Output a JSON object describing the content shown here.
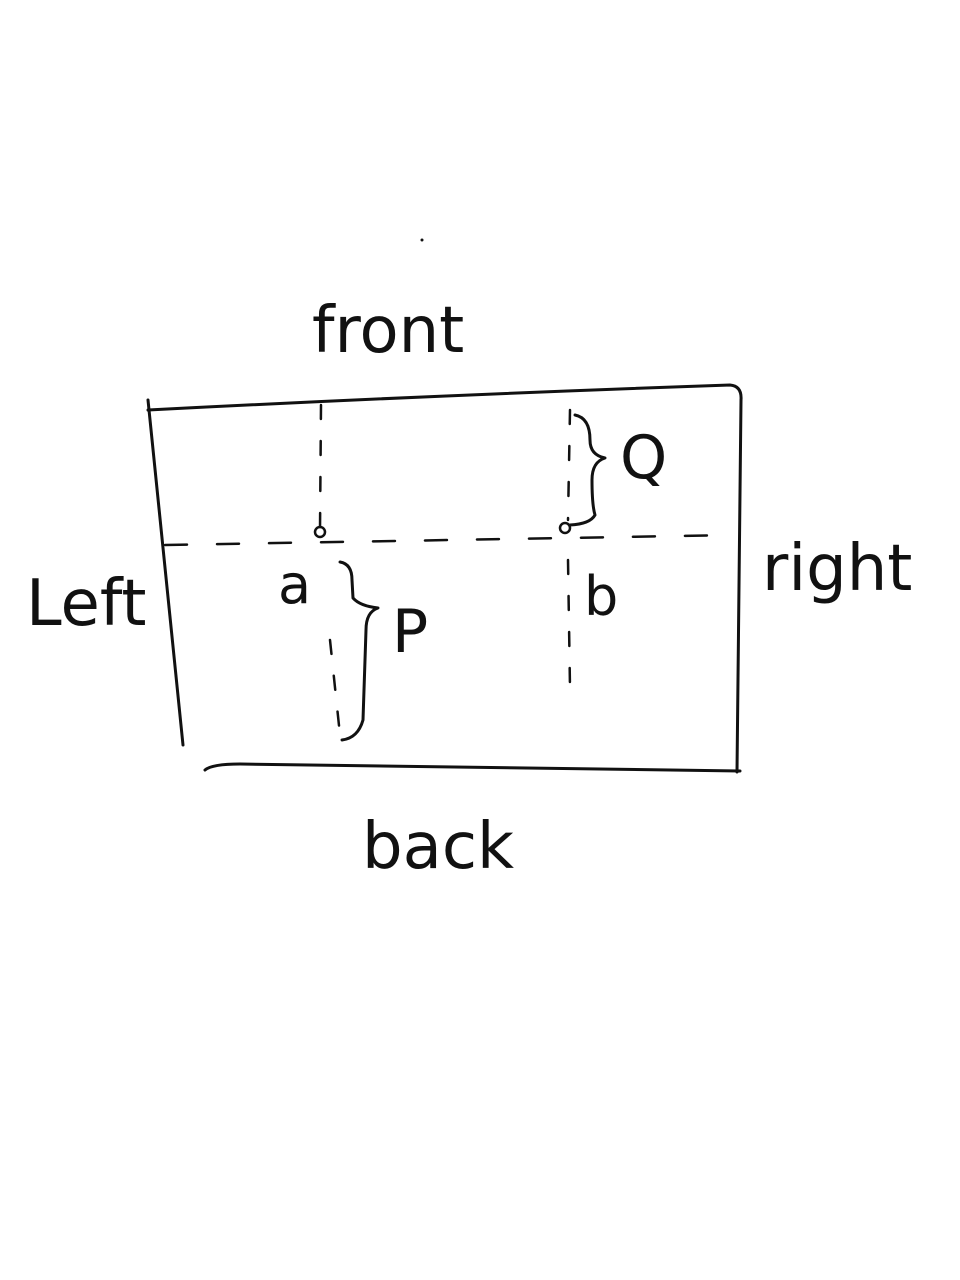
{
  "sides": {
    "front": "front",
    "back": "back",
    "left": "Left",
    "right": "right"
  },
  "points": {
    "a": "a",
    "b": "b"
  },
  "measures": {
    "p": "P",
    "q": "Q"
  },
  "colors": {
    "ink": "#111111",
    "background": "#ffffff"
  }
}
